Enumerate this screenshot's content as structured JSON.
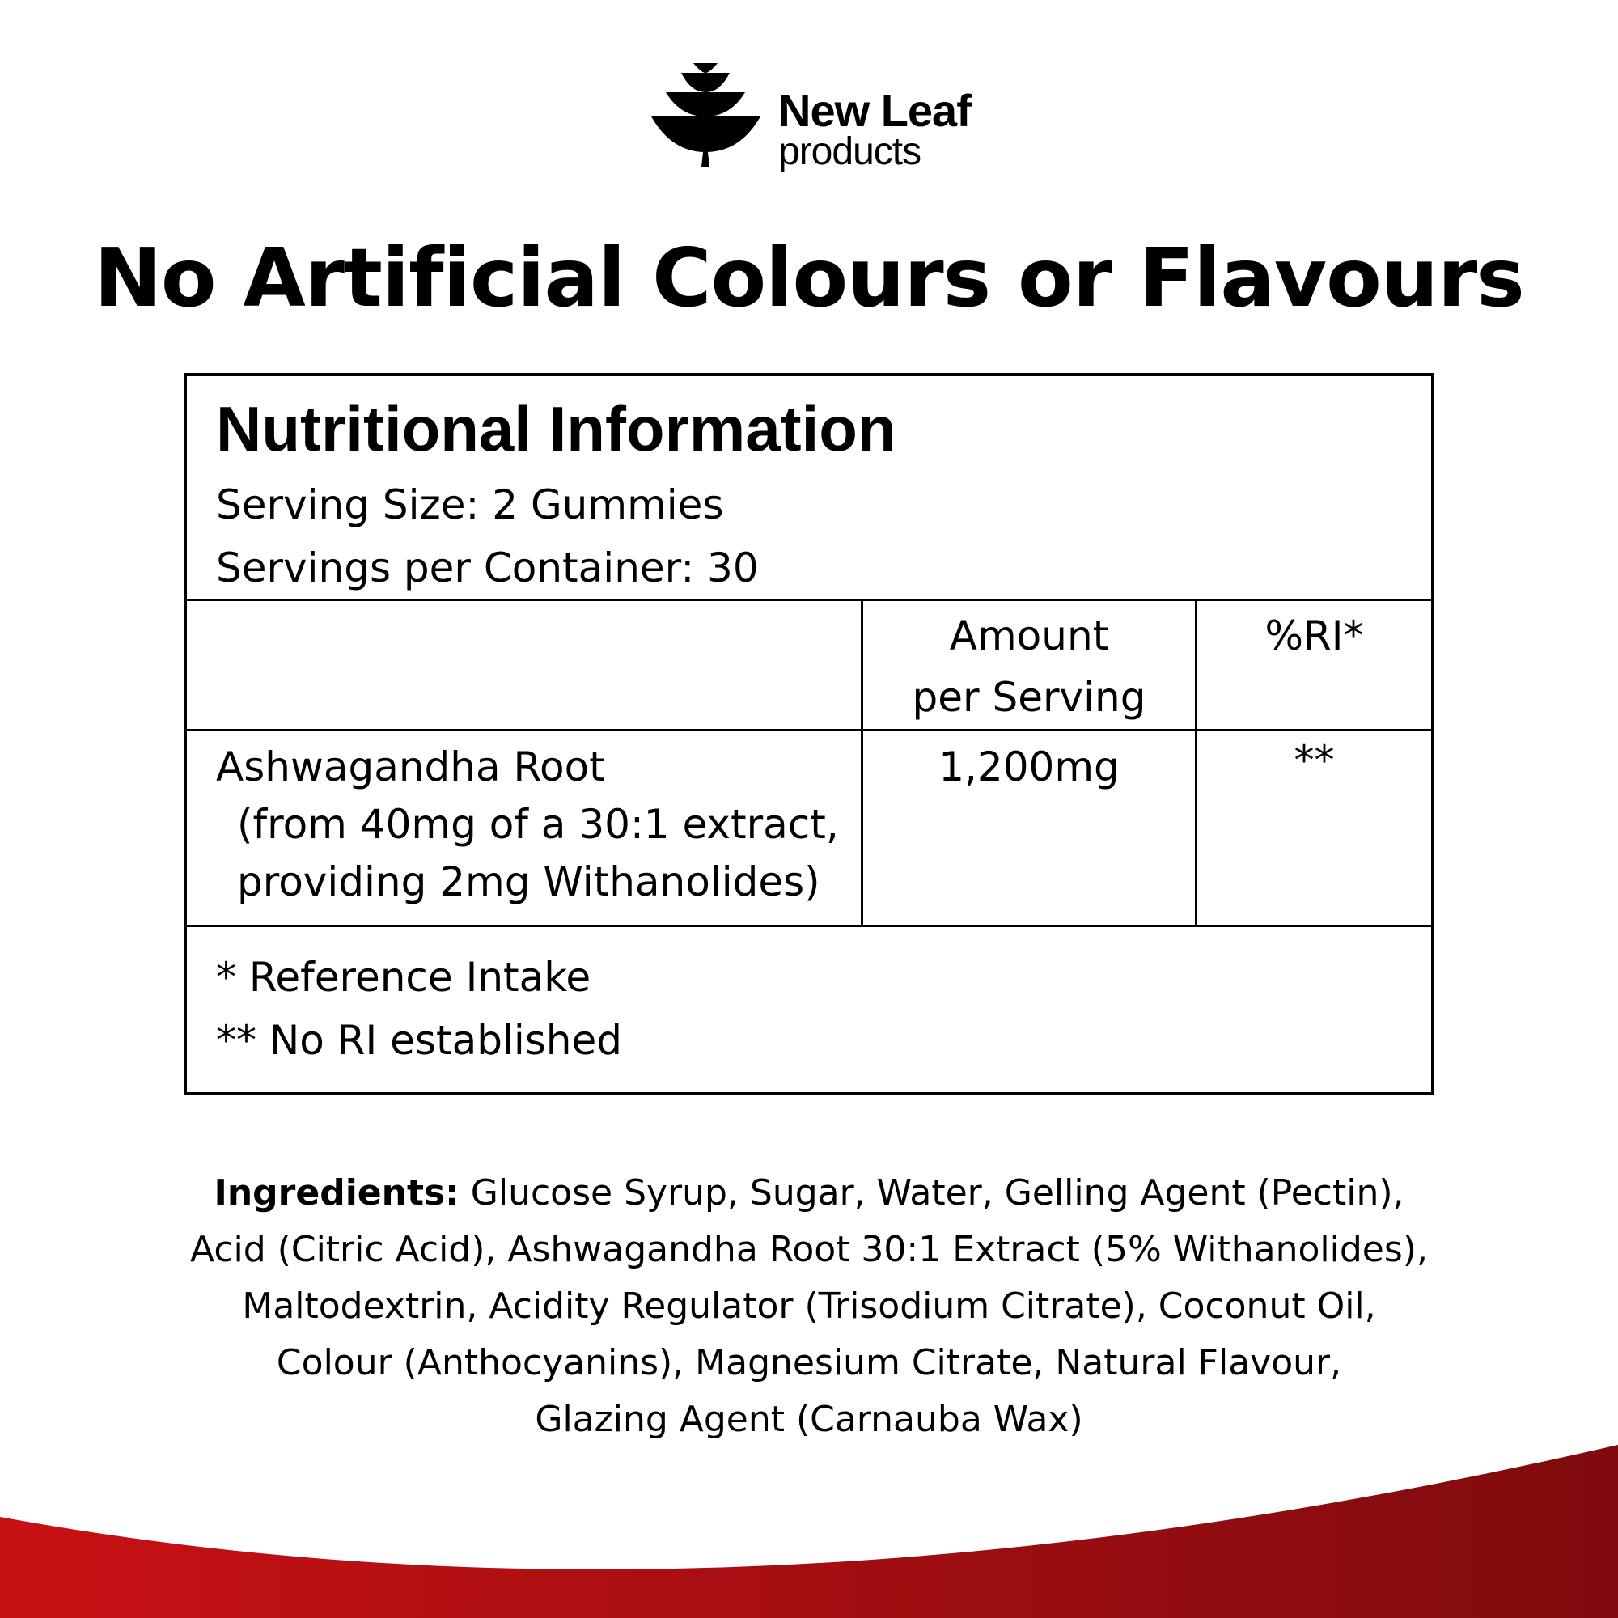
{
  "brand": {
    "name_line1": "New Leaf",
    "name_line2": "products",
    "logo_icon": "stacked-bowls-tree-icon"
  },
  "headline": "No Artificial Colours or Flavours",
  "nutrition": {
    "title": "Nutritional Information",
    "serving_size": "Serving Size: 2 Gummies",
    "servings_per_container": "Servings per Container: 30",
    "columns": {
      "amount_line1": "Amount",
      "amount_line2": "per Serving",
      "ri": "%RI*"
    },
    "rows": [
      {
        "name": "Ashwagandha Root",
        "detail_line1": "(from 40mg of a 30:1 extract,",
        "detail_line2": "providing 2mg Withanolides)",
        "amount": "1,200mg",
        "ri": "**"
      }
    ],
    "footnotes": [
      "* Reference Intake",
      "** No RI established"
    ]
  },
  "ingredients": {
    "label": "Ingredients:",
    "lines": [
      " Glucose Syrup, Sugar, Water, Gelling Agent (Pectin),",
      "Acid (Citric Acid), Ashwagandha Root 30:1 Extract (5% Withanolides),",
      "Maltodextrin, Acidity Regulator (Trisodium Citrate), Coconut Oil,",
      "Colour (Anthocyanins), Magnesium Citrate, Natural Flavour,",
      "Glazing Agent (Carnauba Wax)"
    ]
  },
  "colors": {
    "wave_left": "#c81114",
    "wave_right": "#7f0b0e",
    "text": "#000000"
  }
}
